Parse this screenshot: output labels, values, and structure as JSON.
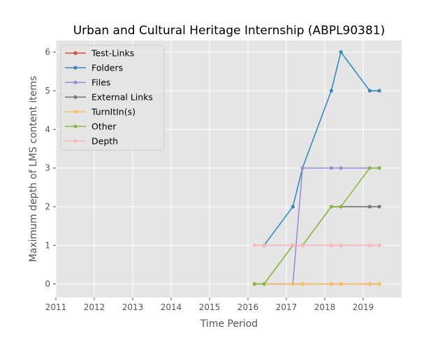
{
  "chart_data": {
    "type": "line",
    "title": "Urban and Cultural Heritage Internship (ABPL90381)",
    "xlabel": "Time Period",
    "ylabel": "Maximum depth of LMS content items",
    "xlim": [
      2011,
      2020
    ],
    "ylim": [
      -0.35,
      6.3
    ],
    "xticks": [
      "2011",
      "2012",
      "2013",
      "2014",
      "2015",
      "2016",
      "2017",
      "2018",
      "2019"
    ],
    "yticks": [
      "0",
      "1",
      "2",
      "3",
      "4",
      "5",
      "6"
    ],
    "grid": true,
    "legend_position": "upper-left",
    "x": [
      2016.17,
      2016.42,
      2017.17,
      2017.42,
      2018.17,
      2018.42,
      2019.17,
      2019.42
    ],
    "series": [
      {
        "name": "Test-Links",
        "color": "#E24A33",
        "values": [
          0,
          0,
          0,
          0,
          0,
          0,
          0,
          0
        ]
      },
      {
        "name": "Folders",
        "color": "#348ABD",
        "values": [
          null,
          1,
          2,
          3,
          5,
          6,
          5,
          5
        ]
      },
      {
        "name": "Files",
        "color": "#988ED5",
        "values": [
          0,
          0,
          0,
          3,
          3,
          3,
          3,
          3
        ]
      },
      {
        "name": "External Links",
        "color": "#777777",
        "values": [
          0,
          0,
          1,
          1,
          2,
          2,
          2,
          2
        ]
      },
      {
        "name": "TurnItIn(s)",
        "color": "#FBC15E",
        "values": [
          0,
          0,
          0,
          0,
          0,
          0,
          0,
          0
        ]
      },
      {
        "name": "Other",
        "color": "#8EBA42",
        "values": [
          0,
          0,
          1,
          1,
          2,
          2,
          3,
          3
        ]
      },
      {
        "name": "Depth",
        "color": "#FFB5B8",
        "values": [
          1,
          1,
          1,
          1,
          1,
          1,
          1,
          1
        ]
      }
    ]
  }
}
